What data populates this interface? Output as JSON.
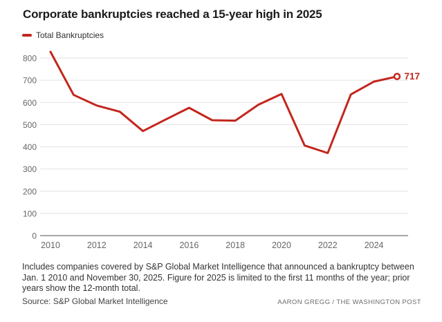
{
  "title": "Corporate bankruptcies reached a 15-year high in 2025",
  "legend": {
    "label": "Total Bankruptcies"
  },
  "chart_data": {
    "type": "line",
    "title": "Corporate bankruptcies reached a 15-year high in 2025",
    "x": [
      2010,
      2011,
      2012,
      2013,
      2014,
      2015,
      2016,
      2017,
      2018,
      2019,
      2020,
      2021,
      2022,
      2023,
      2024,
      2025
    ],
    "series": [
      {
        "name": "Total Bankruptcies",
        "values": [
          828,
          634,
          586,
          558,
          471,
          524,
          576,
          520,
          518,
          590,
          638,
          406,
          372,
          636,
          694,
          717
        ]
      }
    ],
    "xlabel": "",
    "ylabel": "",
    "ylim": [
      0,
      840
    ],
    "yticks": [
      0,
      100,
      200,
      300,
      400,
      500,
      600,
      700,
      800
    ],
    "xticks": [
      2010,
      2012,
      2014,
      2016,
      2018,
      2020,
      2022,
      2024
    ],
    "grid": true,
    "legend_position": "top-left",
    "end_label": "717",
    "end_marker": "open-circle"
  },
  "colors": {
    "line": "#c3261d",
    "grid": "#e2e2e2",
    "axis": "#a6a6a6",
    "tick_label": "#666666",
    "end_label": "#c3261d"
  },
  "footer": {
    "note": "Includes companies covered by S&P Global Market Intelligence that announced a bankruptcy between Jan. 1 2010 and November 30, 2025. Figure for 2025 is limited to the first 11 months of the year; prior years show the 12-month total.",
    "source": "Source: S&P Global Market Intelligence",
    "credit": "AARON GREGG / THE WASHINGTON POST"
  }
}
